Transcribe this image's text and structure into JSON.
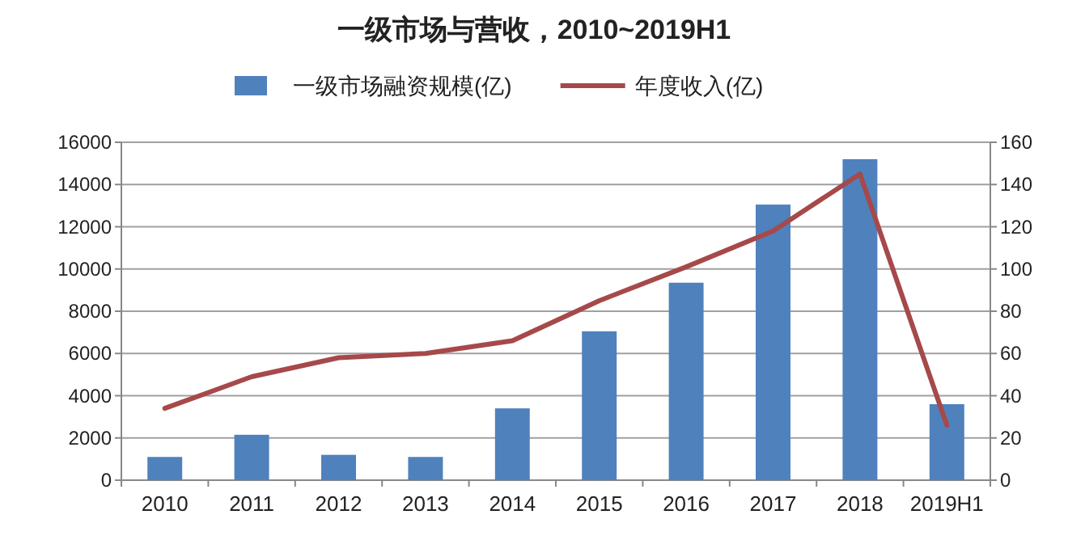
{
  "chart_data": {
    "type": "bar",
    "title": "一级市场与营收，2010~2019H1",
    "categories": [
      "2010",
      "2011",
      "2012",
      "2013",
      "2014",
      "2015",
      "2016",
      "2017",
      "2018",
      "2019H1"
    ],
    "series": [
      {
        "name": "一级市场融资规模(亿)",
        "color": "#4f81bd",
        "values": [
          1100,
          2150,
          1200,
          1100,
          3400,
          7050,
          9350,
          13050,
          15200,
          3600
        ]
      },
      {
        "name": "年度收入(亿)",
        "type": "line",
        "axis": "y2",
        "color": "#a6494a",
        "values": [
          34,
          49,
          58,
          60,
          66,
          85,
          101,
          118,
          145,
          26
        ]
      }
    ],
    "ylim": [
      0,
      16000
    ],
    "yticks": [
      0,
      2000,
      4000,
      6000,
      8000,
      10000,
      12000,
      14000,
      16000
    ],
    "y2lim": [
      0,
      160
    ],
    "y2ticks": [
      0,
      20,
      40,
      60,
      80,
      100,
      120,
      140,
      160
    ],
    "grid": "y",
    "legend": "top"
  }
}
